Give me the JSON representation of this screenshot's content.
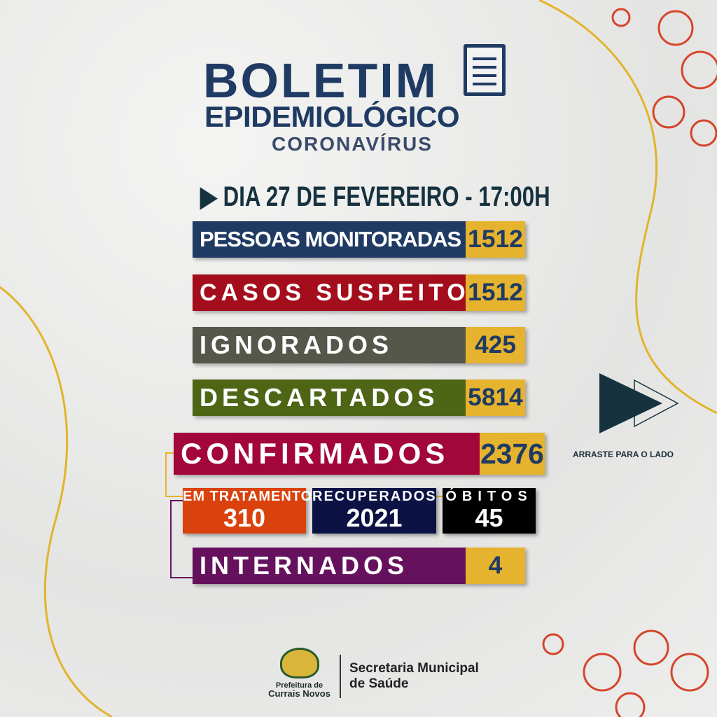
{
  "header": {
    "title": "BOLETIM",
    "subtitle": "EPIDEMIOLÓGICO",
    "tag": "CORONAVÍRUS",
    "date": "DIA 27 DE FEVEREIRO - 17:00H"
  },
  "stats": [
    {
      "label": "PESSOAS MONITORADAS",
      "value": "1512",
      "color": "#1f3b63"
    },
    {
      "label": "CASOS SUSPEITOS",
      "value": "1512",
      "color": "#a30d1c"
    },
    {
      "label": "IGNORADOS",
      "value": "425",
      "color": "#55574a"
    },
    {
      "label": "DESCARTADOS",
      "value": "5814",
      "color": "#4e6515"
    },
    {
      "label": "CONFIRMADOS",
      "value": "2376",
      "color": "#a3063a"
    },
    {
      "label": "INTERNADOS",
      "value": "4",
      "color": "#66115e"
    }
  ],
  "breakdown": [
    {
      "label": "EM TRATAMENTO",
      "value": "310",
      "color": "#d9420c"
    },
    {
      "label": "RECUPERADOS",
      "value": "2021",
      "color": "#0c1244"
    },
    {
      "label": "ÓBITOS",
      "value": "45",
      "color": "#000000"
    }
  ],
  "swipe": {
    "label": "ARRASTE PARA O LADO"
  },
  "footer": {
    "org_line1": "Prefeitura de",
    "org_line2": "Currais Novos",
    "dept_line1": "Secretaria Municipal",
    "dept_line2": "de Saúde"
  },
  "colors": {
    "value_box": "#e6b32e",
    "title": "#1f3b63",
    "accent_line": "#e6b32e",
    "virus": "#d6452a"
  }
}
